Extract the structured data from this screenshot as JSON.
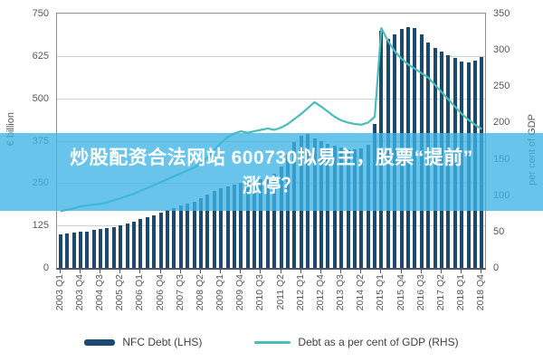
{
  "overlay": {
    "line1": "炒股配资合法网站 600730拟易主，股票“提前”",
    "line2": "涨停？",
    "band_color": "#3EB4E4",
    "band_opacity": 0.78,
    "text_color": "#FFFFFF"
  },
  "legend": [
    {
      "label": "NFC Debt (LHS)",
      "swatch": "bar",
      "color": "#1C4A6E"
    },
    {
      "label": "Debt as a per cent of GDP (RHS)",
      "swatch": "line",
      "color": "#4ABDB8"
    }
  ],
  "chart_data": {
    "type": "bar",
    "subtype": "bar+line dual axis",
    "title": "",
    "x": [
      "2003 Q1",
      "2003 Q2",
      "2003 Q3",
      "2003 Q4",
      "2004 Q1",
      "2004 Q2",
      "2004 Q3",
      "2004 Q4",
      "2005 Q1",
      "2005 Q2",
      "2005 Q3",
      "2005 Q4",
      "2006 Q1",
      "2006 Q2",
      "2006 Q3",
      "2006 Q4",
      "2007 Q1",
      "2007 Q2",
      "2007 Q3",
      "2007 Q4",
      "2008 Q1",
      "2008 Q2",
      "2008 Q3",
      "2008 Q4",
      "2009 Q1",
      "2009 Q2",
      "2009 Q3",
      "2009 Q4",
      "2010 Q1",
      "2010 Q2",
      "2010 Q3",
      "2010 Q4",
      "2011 Q1",
      "2011 Q2",
      "2011 Q3",
      "2011 Q4",
      "2012 Q1",
      "2012 Q2",
      "2012 Q3",
      "2012 Q4",
      "2013 Q1",
      "2013 Q2",
      "2013 Q3",
      "2013 Q4",
      "2014 Q1",
      "2014 Q2",
      "2014 Q3",
      "2014 Q4",
      "2015 Q1",
      "2015 Q2",
      "2015 Q3",
      "2015 Q4",
      "2016 Q1",
      "2016 Q2",
      "2016 Q3",
      "2016 Q4",
      "2017 Q1",
      "2017 Q2",
      "2017 Q3",
      "2017 Q4",
      "2018 Q1",
      "2018 Q2",
      "2018 Q3",
      "2018 Q4"
    ],
    "x_tick_labels": [
      "2003 Q1",
      "2003 Q4",
      "2004 Q3",
      "2005 Q2",
      "2006 Q1",
      "2006 Q4",
      "2007 Q3",
      "2008 Q2",
      "2009 Q1",
      "2009 Q4",
      "2010 Q3",
      "2011 Q2",
      "2012 Q1",
      "2012 Q4",
      "2013 Q3",
      "2014 Q2",
      "2015 Q1",
      "2015 Q4",
      "2016 Q3",
      "2017 Q2",
      "2018 Q1",
      "2018 Q4"
    ],
    "tick_every": 3,
    "series": [
      {
        "name": "NFC Debt (LHS)",
        "type": "bar",
        "axis": "left",
        "color": "#1C4A6E",
        "values": [
          100,
          102,
          104,
          106,
          108,
          111,
          114,
          117,
          121,
          126,
          131,
          137,
          143,
          149,
          156,
          163,
          170,
          177,
          183,
          189,
          196,
          205,
          215,
          226,
          235,
          241,
          246,
          250,
          254,
          258,
          263,
          270,
          278,
          298,
          335,
          372,
          390,
          395,
          382,
          373,
          367,
          361,
          356,
          351,
          349,
          352,
          362,
          425,
          700,
          676,
          690,
          706,
          710,
          708,
          688,
          665,
          650,
          638,
          628,
          620,
          610,
          605,
          612,
          622
        ]
      },
      {
        "name": "Debt as a per cent of GDP (RHS)",
        "type": "line",
        "axis": "right",
        "color": "#4ABDB8",
        "values": [
          78,
          80,
          82,
          85,
          86,
          87,
          88,
          90,
          93,
          96,
          99,
          102,
          106,
          110,
          114,
          118,
          122,
          126,
          130,
          134,
          138,
          144,
          152,
          162,
          172,
          180,
          185,
          188,
          186,
          188,
          190,
          192,
          190,
          193,
          198,
          205,
          212,
          220,
          228,
          222,
          215,
          208,
          203,
          200,
          198,
          197,
          200,
          208,
          330,
          312,
          298,
          288,
          280,
          274,
          268,
          262,
          252,
          242,
          232,
          222,
          212,
          204,
          197,
          191
        ]
      }
    ],
    "left_axis": {
      "title": "€ billion",
      "min": 0,
      "max": 750,
      "step": 125,
      "tick_labels": [
        "0",
        "125",
        "250",
        "375",
        "500",
        "625",
        "750"
      ]
    },
    "right_axis": {
      "title": "per cent of GDP",
      "min": 0,
      "max": 350,
      "step": 50,
      "tick_labels": [
        "0",
        "50",
        "100",
        "150",
        "200",
        "250",
        "300",
        "350"
      ]
    },
    "grid": true,
    "legend_position": "bottom"
  }
}
